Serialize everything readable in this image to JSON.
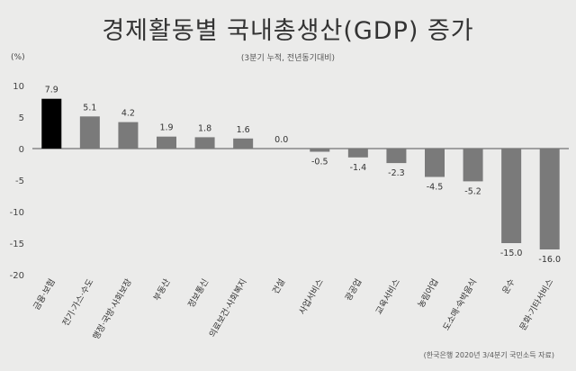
{
  "chart_data": {
    "type": "bar",
    "title": "경제활동별 국내총생산(GDP) 증가",
    "subtitle": "(3분기 누적, 전년동기대비)",
    "unit": "(%)",
    "source": "(한국은행 2020년 3/4분기 국민소득 자료)",
    "categories": [
      "금융·보험",
      "전기·가스·수도",
      "행정·국방·사회보장",
      "부동산",
      "정보통신",
      "의료보건·사회복지",
      "건설",
      "사업서비스",
      "광공업",
      "교육서비스",
      "농림어업",
      "도소매·숙박음식",
      "운수",
      "문화·기타서비스"
    ],
    "values": [
      7.9,
      5.1,
      4.2,
      1.9,
      1.8,
      1.6,
      0.0,
      -0.5,
      -1.4,
      -2.3,
      -4.5,
      -5.2,
      -15.0,
      -16.0
    ],
    "labels": [
      "7.9",
      "5.1",
      "4.2",
      "1.9",
      "1.8",
      "1.6",
      "0.0",
      "-0.5",
      "-1.4",
      "-2.3",
      "-4.5",
      "-5.2",
      "-15.0",
      "-16.0"
    ],
    "ylim": [
      -20,
      10
    ],
    "yticks": [
      10,
      5,
      0,
      -5,
      -10,
      -15,
      -20
    ],
    "colors": {
      "highlight": "#000000",
      "bar": "#7a7a7a",
      "axis": "#555555"
    },
    "highlight_index": 0
  }
}
